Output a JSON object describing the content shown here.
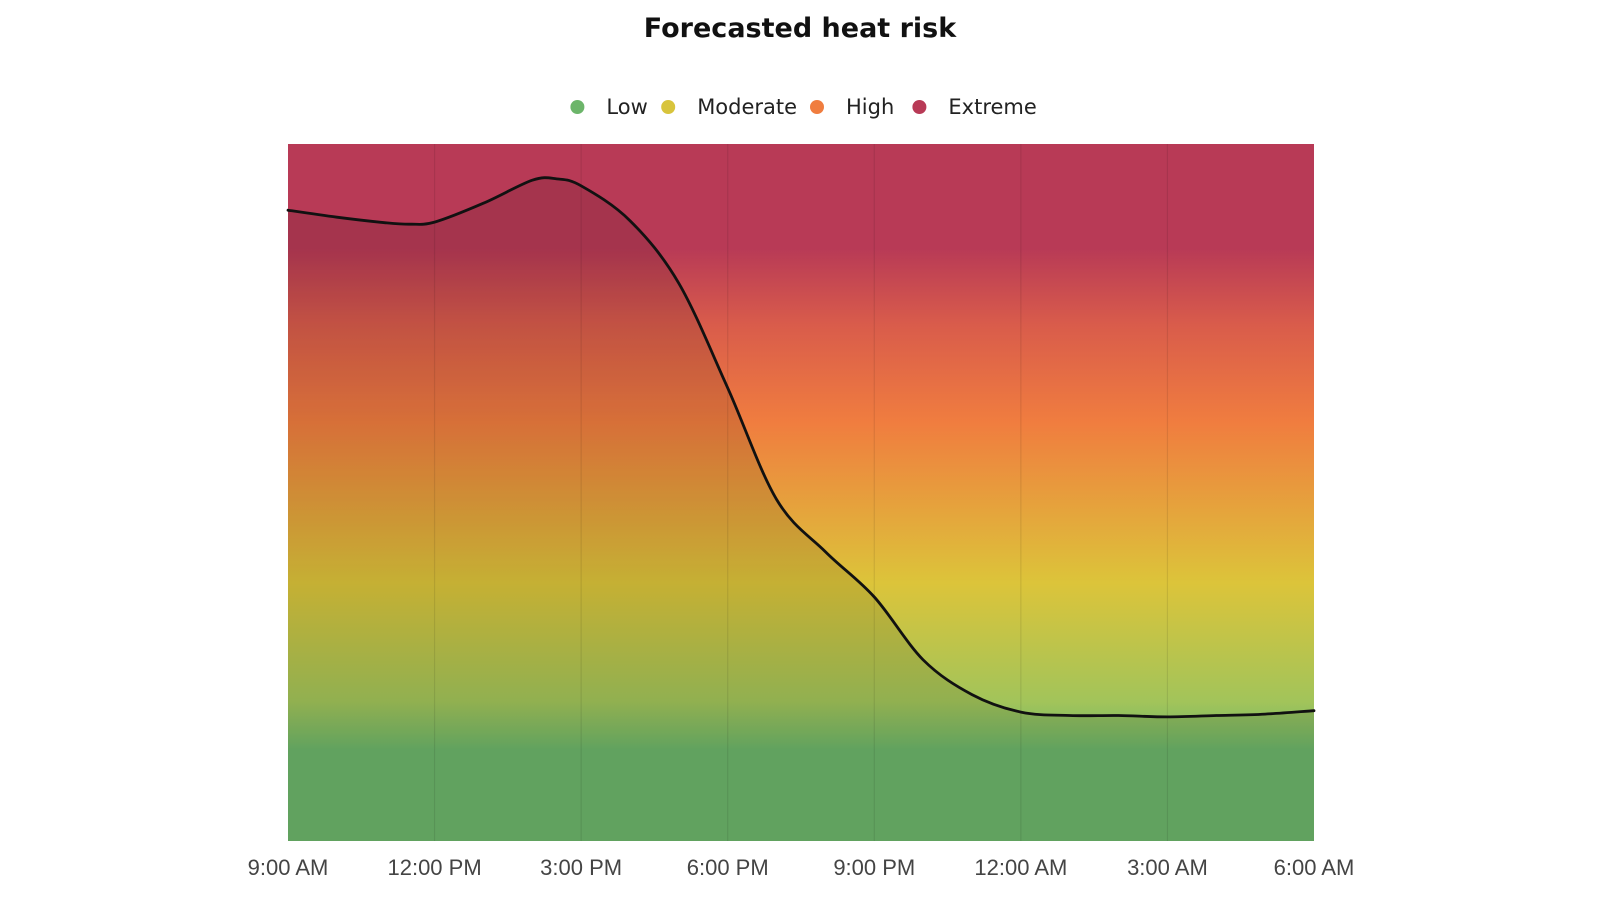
{
  "chart_data": {
    "type": "area",
    "title": "Forecasted heat risk",
    "xlabel": "",
    "ylabel": "",
    "x_ticks": [
      "9:00 AM",
      "12:00 PM",
      "3:00 PM",
      "6:00 PM",
      "9:00 PM",
      "12:00 AM",
      "3:00 AM",
      "6:00 AM"
    ],
    "x_hours": [
      0,
      1,
      2,
      2.5,
      3,
      4,
      5,
      5.5,
      6,
      7,
      8,
      9,
      10,
      11,
      12,
      13,
      14,
      15,
      16,
      17,
      18,
      19,
      20,
      21
    ],
    "values": [
      0.905,
      0.895,
      0.887,
      0.885,
      0.888,
      0.915,
      0.948,
      0.95,
      0.94,
      0.89,
      0.8,
      0.65,
      0.49,
      0.415,
      0.35,
      0.26,
      0.21,
      0.185,
      0.18,
      0.18,
      0.178,
      0.18,
      0.182,
      0.187
    ],
    "ylim": [
      0,
      1
    ],
    "grid": true,
    "legend": {
      "position": "top-center",
      "entries": [
        {
          "label": "Low",
          "color": "#6cb56a"
        },
        {
          "label": "Moderate",
          "color": "#d8c43c"
        },
        {
          "label": "High",
          "color": "#f07d3f"
        },
        {
          "label": "Extreme",
          "color": "#b83a56"
        }
      ]
    },
    "colors": {
      "line": "#111111",
      "low": "#6cb56a",
      "low_moderate": "#a2c45a",
      "moderate": "#dcc43a",
      "high": "#f07d3f",
      "high_extreme": "#d95c4b",
      "extreme": "#b83a56"
    }
  }
}
